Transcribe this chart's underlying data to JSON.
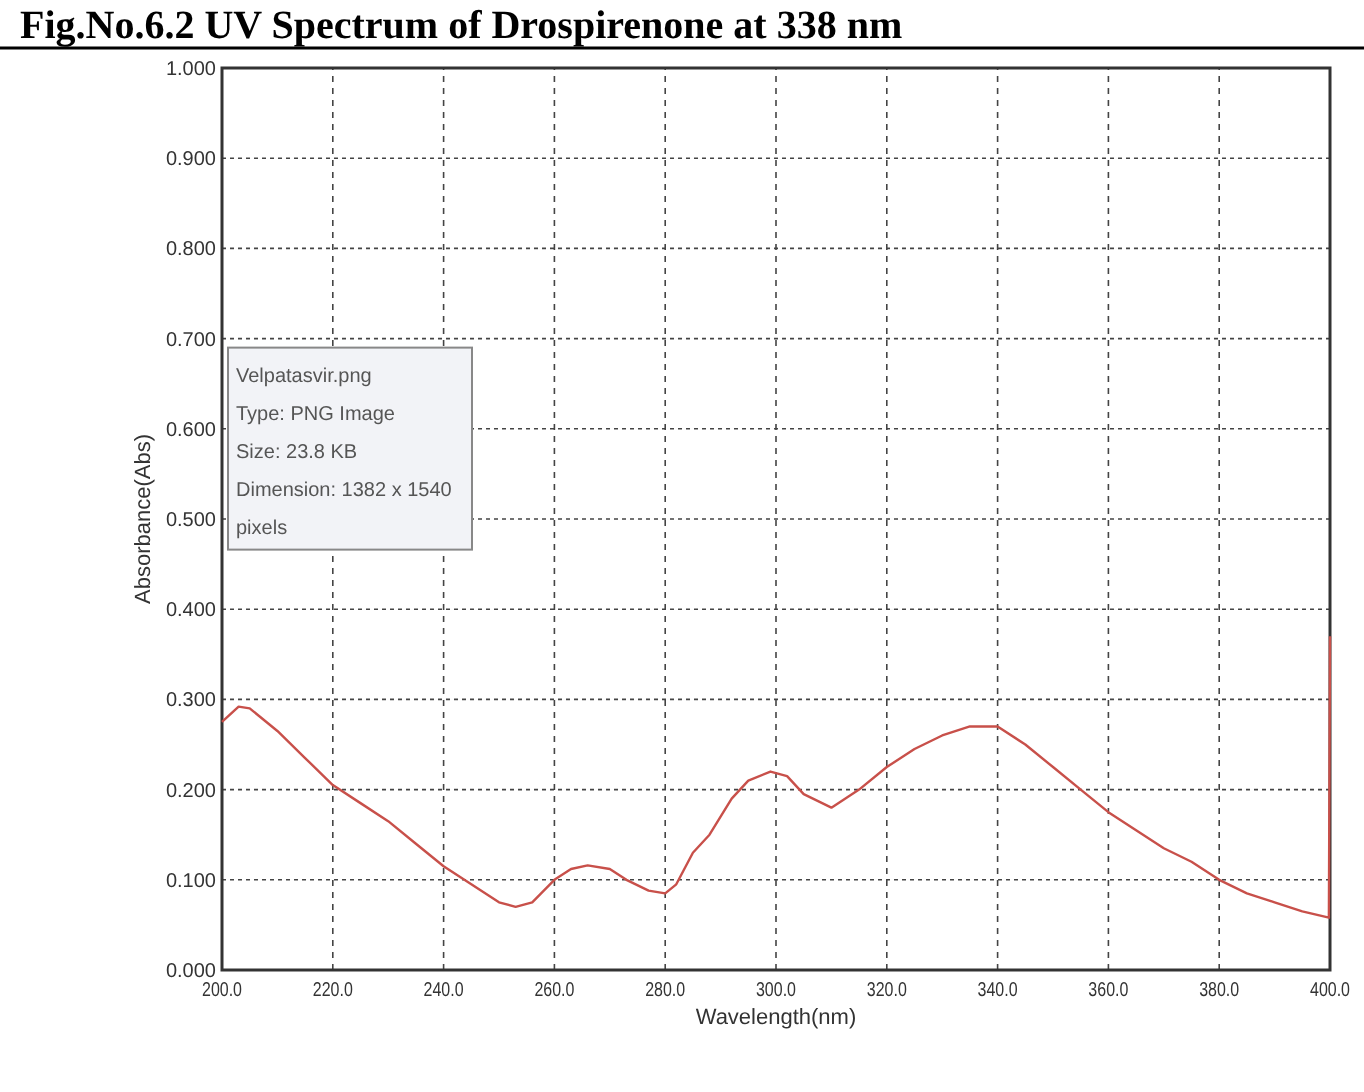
{
  "chart_data": {
    "type": "line",
    "title": "Fig.No.6.2 UV Spectrum of Drospirenone at 338 nm",
    "xlabel": "Wavelength(nm)",
    "ylabel": "Absorbance(Abs)",
    "x": [
      200,
      203,
      205,
      210,
      215,
      220,
      225,
      230,
      235,
      240,
      245,
      250,
      253,
      256,
      260,
      263,
      266,
      270,
      273,
      277,
      280,
      282,
      285,
      288,
      292,
      295,
      299,
      302,
      305,
      310,
      315,
      320,
      325,
      330,
      335,
      340,
      345,
      350,
      355,
      360,
      365,
      370,
      375,
      380,
      385,
      390,
      395,
      399.8,
      400
    ],
    "series": [
      {
        "color": "#c8504a",
        "values": [
          0.275,
          0.292,
          0.29,
          0.265,
          0.235,
          0.205,
          0.185,
          0.165,
          0.14,
          0.115,
          0.095,
          0.075,
          0.07,
          0.075,
          0.1,
          0.112,
          0.116,
          0.112,
          0.1,
          0.088,
          0.085,
          0.095,
          0.13,
          0.15,
          0.19,
          0.21,
          0.22,
          0.215,
          0.195,
          0.18,
          0.2,
          0.225,
          0.245,
          0.26,
          0.27,
          0.27,
          0.25,
          0.225,
          0.2,
          0.175,
          0.155,
          0.135,
          0.12,
          0.1,
          0.085,
          0.075,
          0.065,
          0.058,
          0.37
        ]
      }
    ],
    "xlim": [
      200,
      400
    ],
    "xticks": [
      {
        "value": 200,
        "label": "200.0"
      },
      {
        "value": 220,
        "label": "220.0"
      },
      {
        "value": 240,
        "label": "240.0"
      },
      {
        "value": 260,
        "label": "260.0"
      },
      {
        "value": 280,
        "label": "280.0"
      },
      {
        "value": 300,
        "label": "300.0"
      },
      {
        "value": 320,
        "label": "320.0"
      },
      {
        "value": 340,
        "label": "340.0"
      },
      {
        "value": 360,
        "label": "360.0"
      },
      {
        "value": 380,
        "label": "380.0"
      },
      {
        "value": 400,
        "label": "400.0"
      }
    ],
    "ylim": [
      0,
      1
    ],
    "yticks": [
      {
        "value": 0,
        "label": "0.000"
      },
      {
        "value": 0.1,
        "label": "0.100"
      },
      {
        "value": 0.2,
        "label": "0.200"
      },
      {
        "value": 0.3,
        "label": "0.300"
      },
      {
        "value": 0.4,
        "label": "0.400"
      },
      {
        "value": 0.5,
        "label": "0.500"
      },
      {
        "value": 0.6,
        "label": "0.600"
      },
      {
        "value": 0.7,
        "label": "0.700"
      },
      {
        "value": 0.8,
        "label": "0.800"
      },
      {
        "value": 0.9,
        "label": "0.900"
      },
      {
        "value": 1,
        "label": "1.000"
      }
    ],
    "grid": true,
    "line_style": "solid",
    "annotations": [
      "Velpatasvir.png",
      "Type: PNG Image",
      "Size: 23.8 KB",
      "Dimension: 1382 x 1540",
      "pixels"
    ]
  }
}
